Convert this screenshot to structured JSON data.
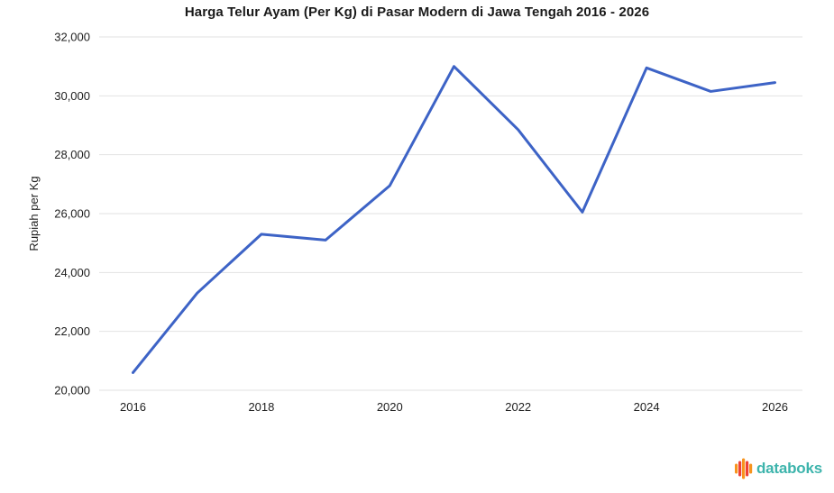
{
  "chart": {
    "title": "Harga Telur Ayam (Per Kg) di Pasar Modern di Jawa Tengah 2016 - 2026",
    "y_axis_title": "Rupiah per Kg"
  },
  "branding": {
    "logo_text": "databoks",
    "logo_text_color": "#3db4ac",
    "logo_bar_colors": [
      "#f7941e",
      "#ef4136",
      "#f7941e",
      "#ef4136",
      "#f7941e"
    ]
  },
  "colors": {
    "background": "#ffffff",
    "line": "#3d63c6",
    "grid": "#e2e2e2",
    "axis_text": "#212121"
  },
  "chart_data": {
    "type": "line",
    "title": "Harga Telur Ayam (Per Kg) di Pasar Modern di Jawa Tengah 2016 - 2026",
    "xlabel": "",
    "ylabel": "Rupiah per Kg",
    "x": [
      2016,
      2017,
      2018,
      2019,
      2020,
      2021,
      2022,
      2023,
      2024,
      2025,
      2026
    ],
    "values": [
      20600,
      23300,
      25300,
      25100,
      26950,
      31000,
      28850,
      26050,
      30950,
      30150,
      30450
    ],
    "ylim": [
      20000,
      32000
    ],
    "y_tick_step": 2000,
    "y_tick_labels": [
      "20,000",
      "22,000",
      "24,000",
      "26,000",
      "28,000",
      "30,000",
      "32,000"
    ],
    "x_tick_years": [
      2016,
      2018,
      2020,
      2022,
      2024,
      2026
    ],
    "x_tick_labels": [
      "2016",
      "2018",
      "2020",
      "2022",
      "2024",
      "2026"
    ],
    "grid": "horizontal",
    "legend": "none",
    "markers": "none"
  }
}
